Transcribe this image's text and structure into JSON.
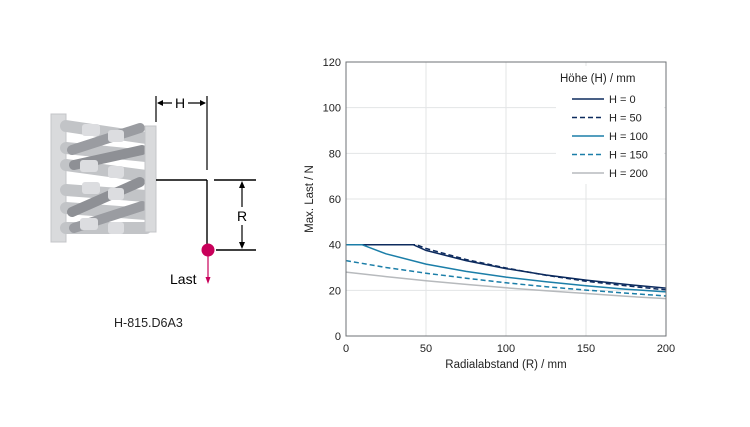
{
  "diagram": {
    "dimension_h": "H",
    "dimension_r": "R",
    "load_label": "Last",
    "model_label": "H-815.D6A3",
    "colors": {
      "frame": "#d9dadc",
      "strut": "#b4b6ba",
      "strut_dark": "#8e9095",
      "load_dot": "#c8005a"
    }
  },
  "chart_data": {
    "type": "line",
    "xlabel": "Radialabstand (R) / mm",
    "ylabel": "Max. Last / N",
    "xlim": [
      0,
      200
    ],
    "ylim": [
      0,
      120
    ],
    "xticks": [
      0,
      50,
      100,
      150,
      200
    ],
    "yticks": [
      0,
      20,
      40,
      60,
      80,
      100,
      120
    ],
    "grid": true,
    "legend_title": "Höhe (H) / mm",
    "legend_position": "top-right",
    "series": [
      {
        "name": "H = 0",
        "color": "#0d2b5e",
        "dash": false,
        "points": [
          [
            0,
            40
          ],
          [
            25,
            40
          ],
          [
            42,
            40
          ],
          [
            50,
            37.5
          ],
          [
            75,
            33
          ],
          [
            100,
            29.5
          ],
          [
            125,
            26.7
          ],
          [
            150,
            24.5
          ],
          [
            175,
            22.6
          ],
          [
            200,
            21
          ]
        ]
      },
      {
        "name": "H = 50",
        "color": "#0d2b5e",
        "dash": true,
        "points": [
          [
            0,
            40
          ],
          [
            25,
            40
          ],
          [
            44,
            40
          ],
          [
            50,
            38.3
          ],
          [
            75,
            33.5
          ],
          [
            100,
            29.8
          ],
          [
            125,
            26.6
          ],
          [
            150,
            24
          ],
          [
            175,
            22
          ],
          [
            200,
            20.2
          ]
        ]
      },
      {
        "name": "H = 100",
        "color": "#1b7ea8",
        "dash": false,
        "points": [
          [
            0,
            40
          ],
          [
            10,
            40
          ],
          [
            25,
            36
          ],
          [
            50,
            31.5
          ],
          [
            75,
            28.3
          ],
          [
            100,
            25.8
          ],
          [
            125,
            23.8
          ],
          [
            150,
            22
          ],
          [
            175,
            20.5
          ],
          [
            200,
            19.3
          ]
        ]
      },
      {
        "name": "H = 150",
        "color": "#1b7ea8",
        "dash": true,
        "points": [
          [
            0,
            33
          ],
          [
            25,
            30
          ],
          [
            50,
            27.5
          ],
          [
            75,
            25.3
          ],
          [
            100,
            23.3
          ],
          [
            125,
            21.6
          ],
          [
            150,
            20.1
          ],
          [
            175,
            18.8
          ],
          [
            200,
            17.5
          ]
        ]
      },
      {
        "name": "H = 200",
        "color": "#b7babd",
        "dash": false,
        "points": [
          [
            0,
            28
          ],
          [
            25,
            26
          ],
          [
            50,
            24.2
          ],
          [
            75,
            22.6
          ],
          [
            100,
            21.1
          ],
          [
            125,
            19.8
          ],
          [
            150,
            18.6
          ],
          [
            175,
            17.4
          ],
          [
            200,
            16.4
          ]
        ]
      }
    ]
  }
}
